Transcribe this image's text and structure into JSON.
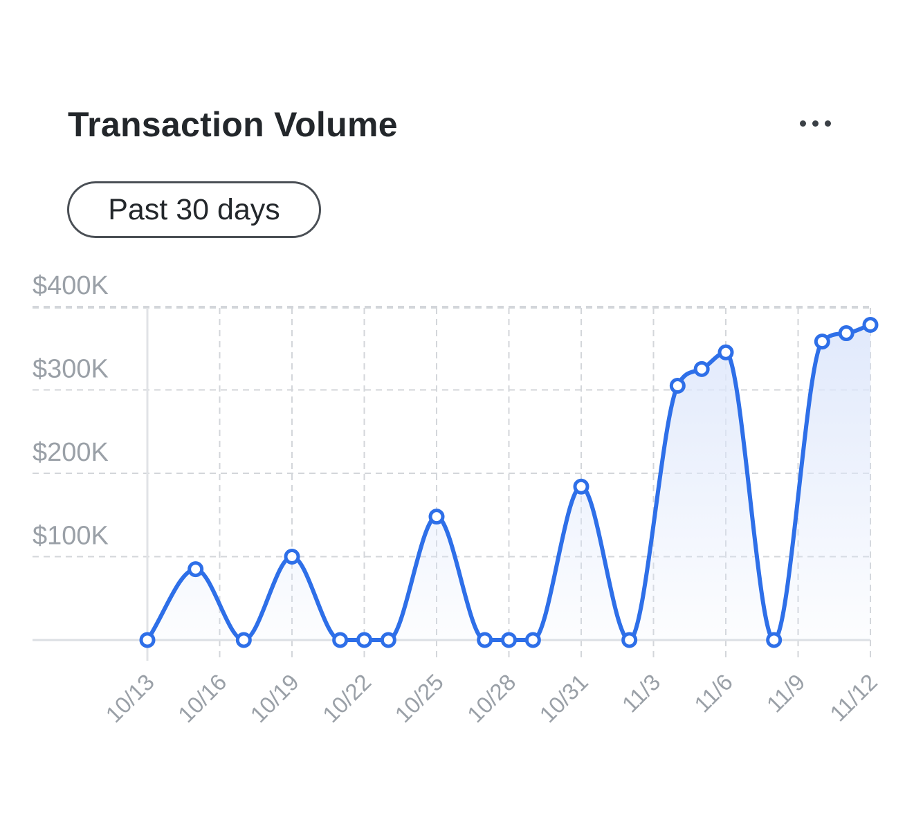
{
  "header": {
    "title": "Transaction Volume",
    "more_icon": "more-horizontal-icon",
    "range_label": "Past 30 days"
  },
  "colors": {
    "line": "#2e6fe8",
    "fill_top": "#dfe8fb",
    "grid": "#d3d6da",
    "tick_text": "#9aa0a7"
  },
  "chart_data": {
    "type": "area",
    "title": "Transaction Volume",
    "xlabel": "",
    "ylabel": "",
    "ylim": [
      0,
      400000
    ],
    "grid": true,
    "x": [
      "10/13",
      "10/14",
      "10/15",
      "10/16",
      "10/17",
      "10/18",
      "10/19",
      "10/20",
      "10/21",
      "10/22",
      "10/23",
      "10/24",
      "10/25",
      "10/26",
      "10/27",
      "10/28",
      "10/29",
      "10/30",
      "10/31",
      "11/1",
      "11/2",
      "11/3",
      "11/4",
      "11/5",
      "11/6",
      "11/7",
      "11/8",
      "11/9",
      "11/10",
      "11/11",
      "11/12"
    ],
    "x_ticks": [
      "10/13",
      "10/16",
      "10/19",
      "10/22",
      "10/25",
      "10/28",
      "10/31",
      "11/3",
      "11/6",
      "11/9",
      "11/12"
    ],
    "y_ticks": [
      {
        "value": 100000,
        "label": "$100K"
      },
      {
        "value": 200000,
        "label": "$200K"
      },
      {
        "value": 300000,
        "label": "$300K"
      },
      {
        "value": 400000,
        "label": "$400K"
      }
    ],
    "series": [
      {
        "name": "Transaction Volume",
        "points": [
          {
            "x": "10/13",
            "y": 0
          },
          {
            "x": "10/15",
            "y": 85000
          },
          {
            "x": "10/17",
            "y": 0
          },
          {
            "x": "10/19",
            "y": 100000
          },
          {
            "x": "10/21",
            "y": 0
          },
          {
            "x": "10/22",
            "y": 0
          },
          {
            "x": "10/23",
            "y": 0
          },
          {
            "x": "10/25",
            "y": 148000
          },
          {
            "x": "10/27",
            "y": 0
          },
          {
            "x": "10/28",
            "y": 0
          },
          {
            "x": "10/29",
            "y": 0
          },
          {
            "x": "10/31",
            "y": 184000
          },
          {
            "x": "11/2",
            "y": 0
          },
          {
            "x": "11/4",
            "y": 305000
          },
          {
            "x": "11/5",
            "y": 325000
          },
          {
            "x": "11/6",
            "y": 345000
          },
          {
            "x": "11/8",
            "y": 0
          },
          {
            "x": "11/10",
            "y": 358000
          },
          {
            "x": "11/11",
            "y": 368000
          },
          {
            "x": "11/12",
            "y": 378000
          }
        ]
      }
    ]
  }
}
